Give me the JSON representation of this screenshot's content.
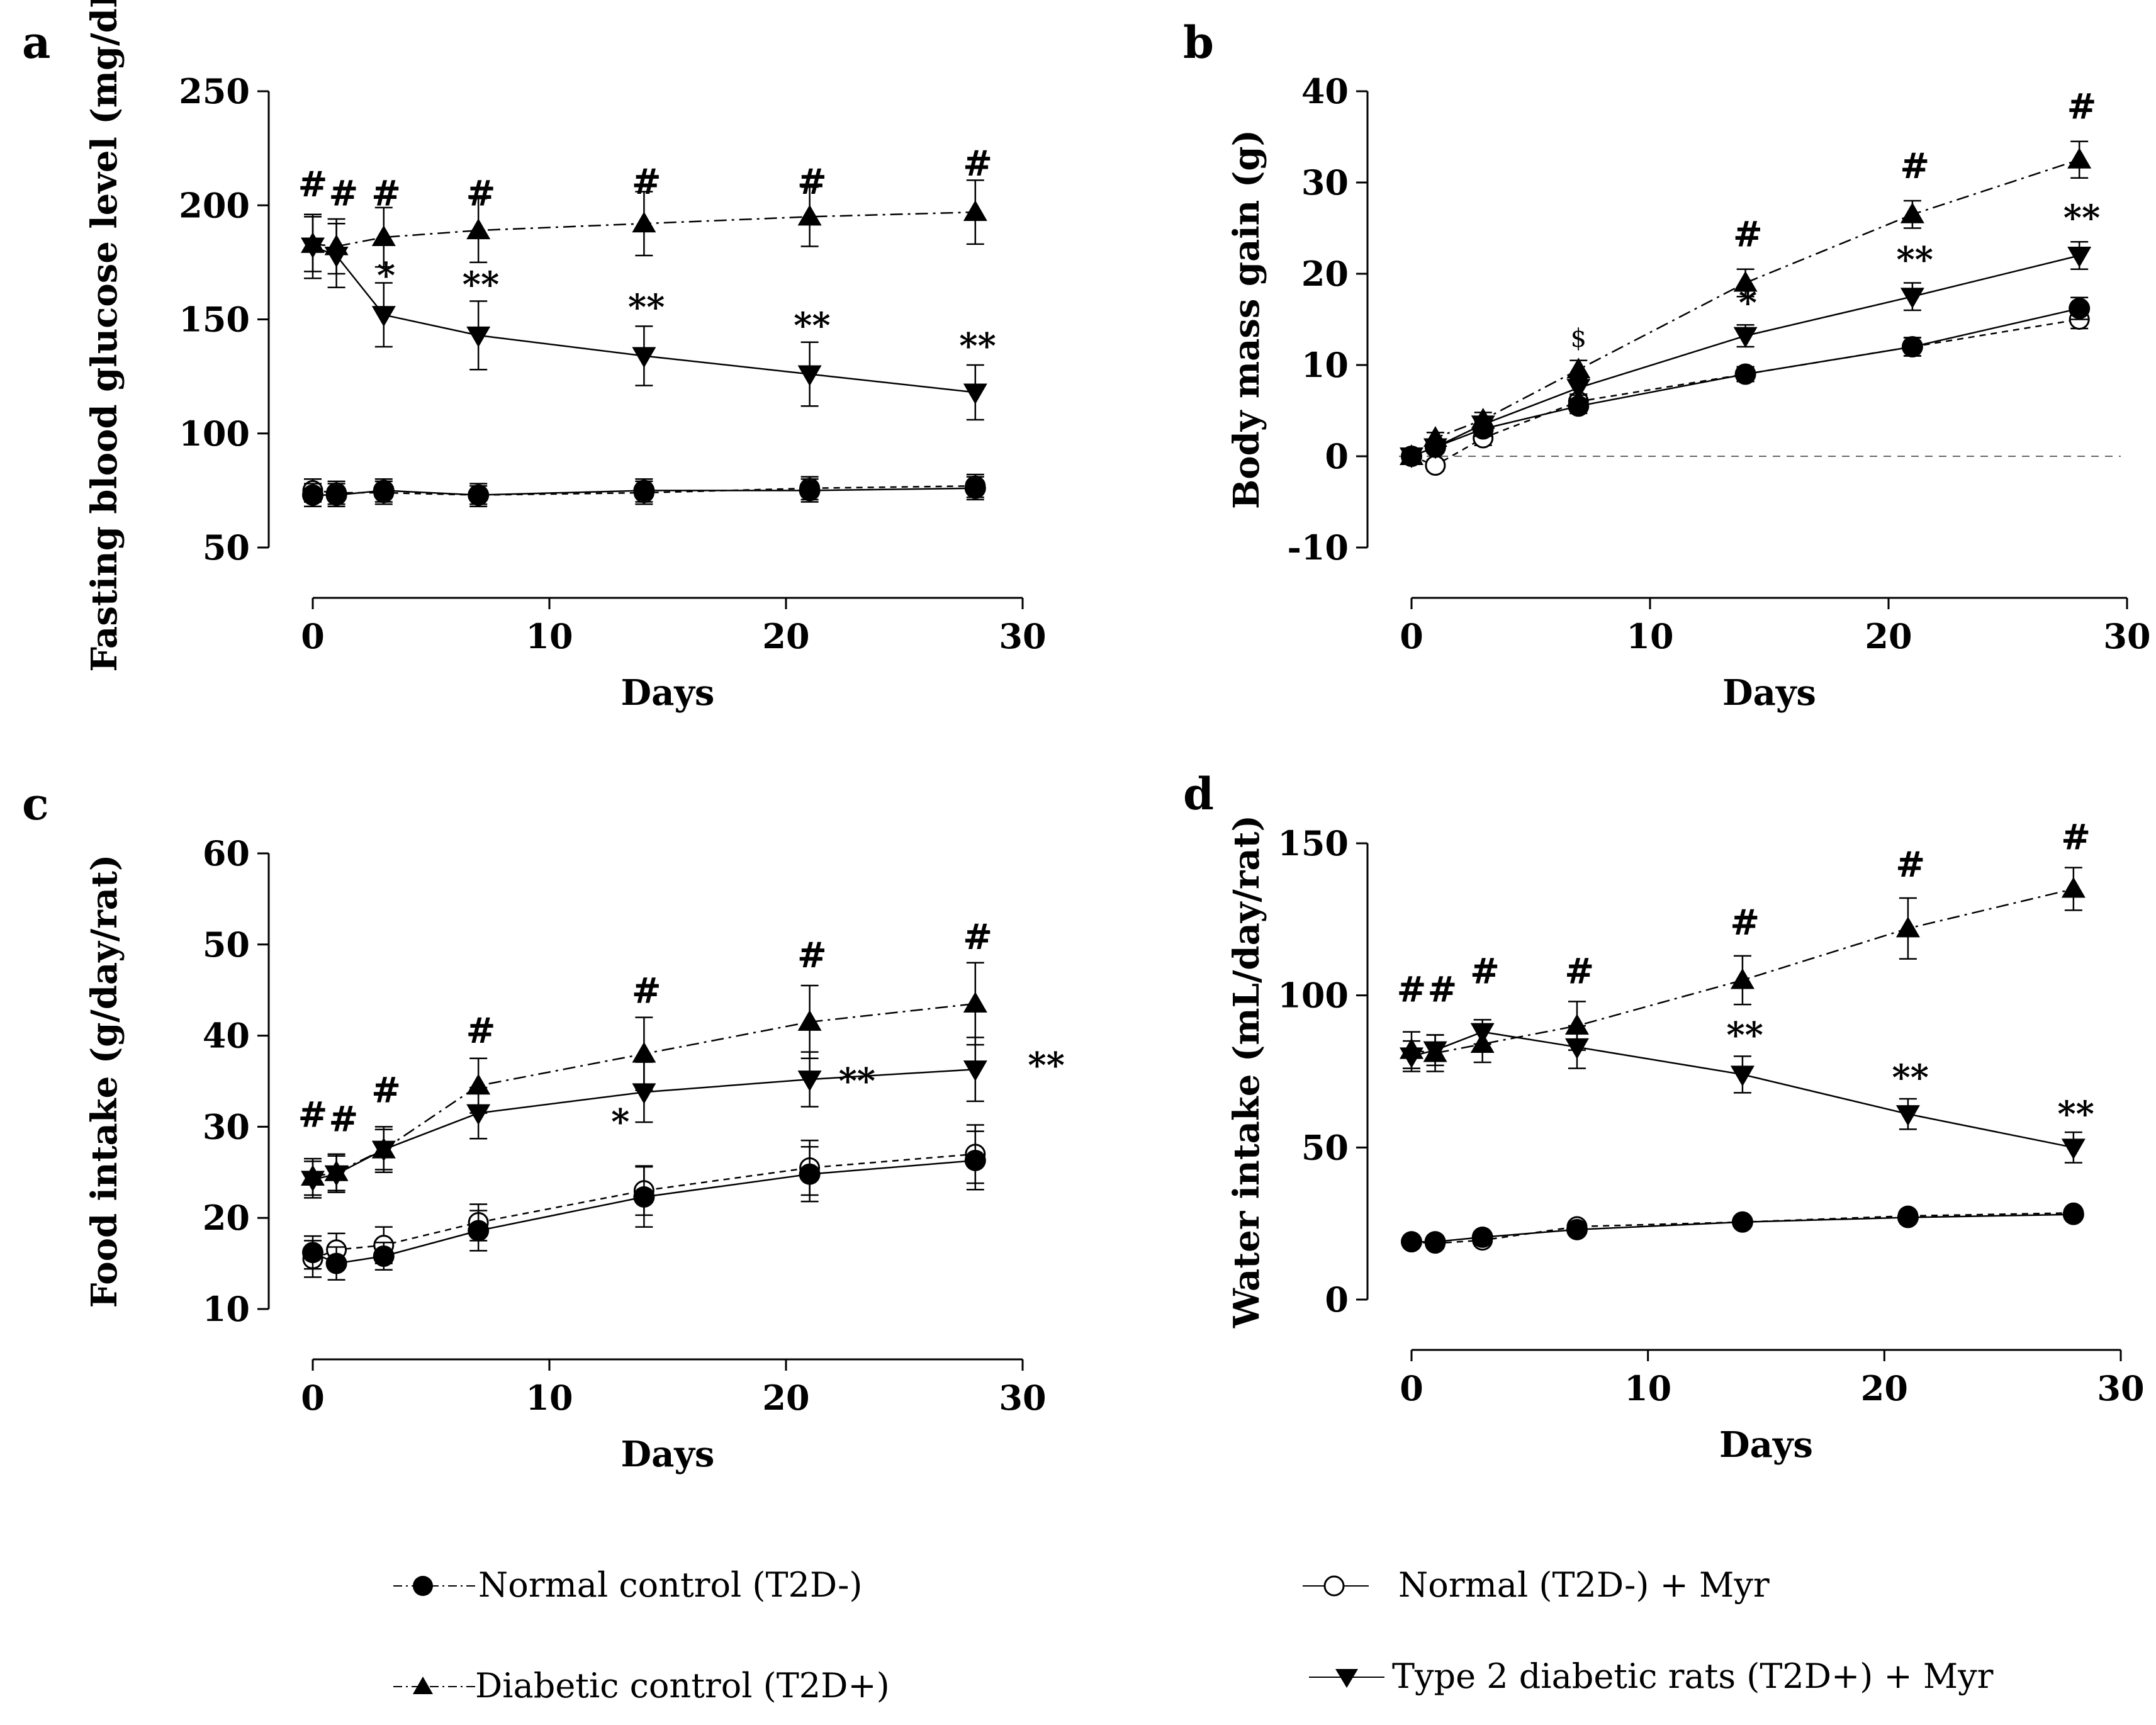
{
  "figure": {
    "legend": [
      {
        "key": "normal_control",
        "label": "Normal control (T2D-)"
      },
      {
        "key": "normal_myr",
        "label": "Normal  (T2D-) + Myr"
      },
      {
        "key": "diabetic_control",
        "label": "Diabetic  control (T2D+)"
      },
      {
        "key": "diabetic_myr",
        "label": "Type 2 diabetic rats  (T2D+) + Myr"
      }
    ]
  },
  "chart_data": [
    {
      "panel": "a",
      "type": "line",
      "title": "",
      "xlabel": "Days",
      "ylabel": "Fasting blood glucose level (mg/dL)",
      "xlim": [
        0,
        30
      ],
      "ylim": [
        50,
        250
      ],
      "xticks": [
        0,
        10,
        20,
        30
      ],
      "yticks": [
        50,
        100,
        150,
        200,
        250
      ],
      "zero_line": false,
      "x": [
        0,
        1,
        3,
        7,
        14,
        21,
        28
      ],
      "series": [
        {
          "key": "normal_myr",
          "values": [
            75,
            74,
            74,
            73,
            74,
            76,
            77
          ],
          "errors": [
            5,
            5,
            5,
            4,
            5,
            5,
            5
          ]
        },
        {
          "key": "normal_control",
          "values": [
            73,
            73,
            75,
            73,
            75,
            75,
            76
          ],
          "errors": [
            5,
            5,
            5,
            5,
            5,
            5,
            5
          ]
        },
        {
          "key": "diabetic_control",
          "values": [
            183,
            182,
            186,
            189,
            192,
            195,
            197
          ],
          "errors": [
            12,
            12,
            13,
            14,
            14,
            13,
            14
          ]
        },
        {
          "key": "diabetic_myr",
          "values": [
            182,
            178,
            152,
            143,
            134,
            126,
            118
          ],
          "errors": [
            14,
            14,
            14,
            15,
            13,
            14,
            12
          ]
        }
      ],
      "annotations": [
        {
          "x": 0,
          "y": 204,
          "text": "#"
        },
        {
          "x": 1.3,
          "y": 200,
          "text": "#"
        },
        {
          "x": 3.1,
          "y": 200,
          "text": "#"
        },
        {
          "x": 7.1,
          "y": 200,
          "text": "#"
        },
        {
          "x": 14.1,
          "y": 205,
          "text": "#"
        },
        {
          "x": 21.1,
          "y": 205,
          "text": "#"
        },
        {
          "x": 28.1,
          "y": 213,
          "text": "#"
        },
        {
          "x": 3.1,
          "y": 164,
          "text": "*"
        },
        {
          "x": 7.1,
          "y": 160,
          "text": "**"
        },
        {
          "x": 14.1,
          "y": 150,
          "text": "**"
        },
        {
          "x": 21.1,
          "y": 142,
          "text": "**"
        },
        {
          "x": 28.1,
          "y": 133,
          "text": "**"
        }
      ]
    },
    {
      "panel": "b",
      "type": "line",
      "title": "",
      "xlabel": "Days",
      "ylabel": "Body mass gain (g)",
      "xlim": [
        0,
        30
      ],
      "ylim": [
        -10,
        40
      ],
      "xticks": [
        0,
        10,
        20,
        30
      ],
      "yticks": [
        -10,
        0,
        10,
        20,
        30,
        40
      ],
      "zero_line": true,
      "x": [
        0,
        1,
        3,
        7,
        14,
        21,
        28
      ],
      "series": [
        {
          "key": "normal_myr",
          "values": [
            0,
            -1,
            2,
            6,
            9,
            12,
            15
          ],
          "errors": [
            0.8,
            0.6,
            0.8,
            0.8,
            0.8,
            1,
            1
          ]
        },
        {
          "key": "normal_control",
          "values": [
            0,
            1,
            3,
            5.5,
            9,
            12,
            16.2
          ],
          "errors": [
            0.8,
            0.6,
            0.8,
            0.8,
            0.8,
            1,
            1.2
          ]
        },
        {
          "key": "diabetic_control",
          "values": [
            0,
            2,
            4,
            9.5,
            19,
            26.5,
            32.5
          ],
          "errors": [
            0.8,
            0.6,
            0.8,
            1,
            1.5,
            1.5,
            2
          ]
        },
        {
          "key": "diabetic_myr",
          "values": [
            0,
            1,
            3.5,
            7.5,
            13.2,
            17.5,
            22
          ],
          "errors": [
            0.8,
            0.6,
            0.8,
            0.8,
            1.2,
            1.5,
            1.5
          ]
        }
      ],
      "annotations": [
        {
          "x": 7,
          "y": 12,
          "text": "$",
          "small": true
        },
        {
          "x": 14.1,
          "y": 23,
          "text": "#"
        },
        {
          "x": 21.1,
          "y": 30.5,
          "text": "#"
        },
        {
          "x": 28.1,
          "y": 37,
          "text": "#"
        },
        {
          "x": 14.1,
          "y": 15.5,
          "text": "*"
        },
        {
          "x": 21.1,
          "y": 20.2,
          "text": "**"
        },
        {
          "x": 28.1,
          "y": 24.8,
          "text": "**"
        }
      ]
    },
    {
      "panel": "c",
      "type": "line",
      "title": "",
      "xlabel": "Days",
      "ylabel": "Food intake  (g/day/rat)",
      "xlim": [
        0,
        30
      ],
      "ylim": [
        10,
        60
      ],
      "xticks": [
        0,
        10,
        20,
        30
      ],
      "yticks": [
        10,
        20,
        30,
        40,
        50,
        60
      ],
      "zero_line": false,
      "x": [
        0,
        1,
        3,
        7,
        14,
        21,
        28
      ],
      "series": [
        {
          "key": "normal_myr",
          "values": [
            15.5,
            16.5,
            17,
            19.5,
            23,
            25.5,
            27
          ],
          "errors": [
            2,
            1.8,
            2,
            2,
            2.7,
            3,
            3.2
          ]
        },
        {
          "key": "normal_control",
          "values": [
            16.2,
            15,
            15.8,
            18.6,
            22.3,
            24.8,
            26.3
          ],
          "errors": [
            1.8,
            1.8,
            1.5,
            2.2,
            3.3,
            3,
            3.2
          ]
        },
        {
          "key": "diabetic_control",
          "values": [
            24.5,
            25,
            27.5,
            34.5,
            38,
            41.5,
            43.5
          ],
          "errors": [
            2,
            2,
            2.5,
            3,
            4,
            4,
            4.5
          ]
        },
        {
          "key": "diabetic_myr",
          "values": [
            24.2,
            24.8,
            27.5,
            31.5,
            33.8,
            35.2,
            36.3
          ],
          "errors": [
            2,
            2,
            2.2,
            2.8,
            3.3,
            3,
            3.5
          ]
        }
      ],
      "annotations": [
        {
          "x": 0,
          "y": 30,
          "text": "#"
        },
        {
          "x": 1.3,
          "y": 29.5,
          "text": "#"
        },
        {
          "x": 3.1,
          "y": 32.7,
          "text": "#"
        },
        {
          "x": 7.1,
          "y": 39.2,
          "text": "#"
        },
        {
          "x": 14.1,
          "y": 43.6,
          "text": "#"
        },
        {
          "x": 21.1,
          "y": 47.5,
          "text": "#"
        },
        {
          "x": 28.1,
          "y": 49.5,
          "text": "#"
        },
        {
          "x": 13,
          "y": 29.2,
          "text": "*"
        },
        {
          "x": 23,
          "y": 33.7,
          "text": "**"
        },
        {
          "x": 31,
          "y": 35.4,
          "text": "**"
        }
      ]
    },
    {
      "panel": "d",
      "type": "line",
      "title": "",
      "xlabel": "Days",
      "ylabel": "Water intake  (mL/day/rat)",
      "xlim": [
        0,
        30
      ],
      "ylim": [
        0,
        150
      ],
      "xticks": [
        0,
        10,
        20,
        30
      ],
      "yticks": [
        0,
        50,
        100,
        150
      ],
      "zero_line": false,
      "x": [
        0,
        1,
        3,
        7,
        14,
        21,
        28
      ],
      "series": [
        {
          "key": "normal_myr",
          "values": [
            19,
            18.5,
            19.5,
            24,
            25.5,
            27.5,
            28.5
          ],
          "errors": [
            1.5,
            1.5,
            1.5,
            1.5,
            1.5,
            1.5,
            1.5
          ]
        },
        {
          "key": "normal_control",
          "values": [
            19,
            19,
            20.5,
            23,
            25.5,
            27,
            28
          ],
          "errors": [
            1.5,
            1.5,
            1.5,
            1.5,
            1.5,
            1.5,
            1.5
          ]
        },
        {
          "key": "diabetic_control",
          "values": [
            82,
            81,
            84,
            90,
            105,
            122,
            135
          ],
          "errors": [
            6,
            6,
            6,
            8,
            8,
            10,
            7
          ]
        },
        {
          "key": "diabetic_myr",
          "values": [
            80,
            82,
            88,
            83,
            74,
            61,
            50
          ],
          "errors": [
            5,
            5,
            4,
            7,
            6,
            5,
            5
          ]
        }
      ],
      "annotations": [
        {
          "x": 0,
          "y": 98,
          "text": "#"
        },
        {
          "x": 1.3,
          "y": 98,
          "text": "#"
        },
        {
          "x": 3.1,
          "y": 104,
          "text": "#"
        },
        {
          "x": 7.1,
          "y": 104,
          "text": "#"
        },
        {
          "x": 14.1,
          "y": 120,
          "text": "#"
        },
        {
          "x": 21.1,
          "y": 139,
          "text": "#"
        },
        {
          "x": 28.1,
          "y": 148,
          "text": "#"
        },
        {
          "x": 14.1,
          "y": 83,
          "text": "**"
        },
        {
          "x": 21.1,
          "y": 69,
          "text": "**"
        },
        {
          "x": 28.1,
          "y": 57,
          "text": "**"
        }
      ]
    }
  ]
}
